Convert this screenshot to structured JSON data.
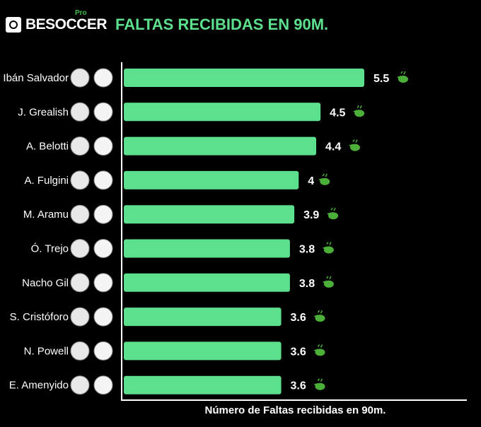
{
  "header": {
    "brand": "BESOCCER",
    "brand_badge": "Pro",
    "title": "FALTAS RECIBIDAS EN 90M."
  },
  "colors": {
    "bar": "#5ce08e",
    "title": "#5ce08e",
    "icon": "#4caf3a",
    "background": "#000000"
  },
  "chart_data": {
    "type": "bar",
    "orientation": "horizontal",
    "title": "FALTAS RECIBIDAS EN 90M.",
    "xlabel": "Número de Faltas recibidas en 90m.",
    "categories": [
      "Ibán Salvador",
      "J. Grealish",
      "A. Belotti",
      "A. Fulgini",
      "M. Aramu",
      "Ó. Trejo",
      "Nacho Gil",
      "S. Cristóforo",
      "N. Powell",
      "E. Amenyido"
    ],
    "values": [
      5.5,
      4.5,
      4.4,
      4,
      3.9,
      3.8,
      3.8,
      3.6,
      3.6,
      3.6
    ],
    "value_labels": [
      "5.5",
      "4.5",
      "4.4",
      "4",
      "3.9",
      "3.8",
      "3.8",
      "3.6",
      "3.6",
      "3.6"
    ],
    "xlim": [
      0,
      5.5
    ],
    "grid": false,
    "value_icon": "whistle-icon"
  }
}
